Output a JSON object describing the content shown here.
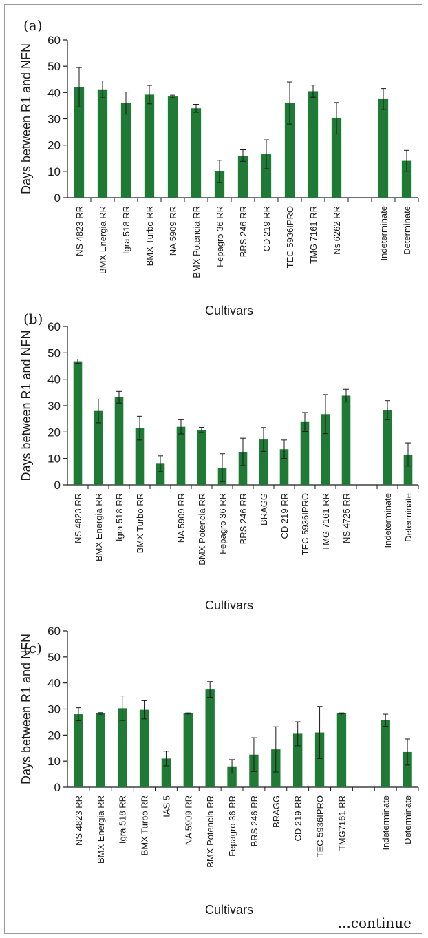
{
  "footer": "...continue",
  "colors": {
    "bar": "#1f7a36",
    "axis": "#1a1a1a",
    "error": "#1a1a1a"
  },
  "chart_data": [
    {
      "type": "bar",
      "panel": "(a)",
      "ylabel": "Days between R1 and NFN",
      "xlabel": "Cultivars",
      "ylim": [
        0,
        60
      ],
      "yticks": [
        0,
        10,
        20,
        30,
        40,
        50,
        60
      ],
      "categories": [
        "NS 4823 RR",
        "BMX Energia RR",
        "Igra 518 RR",
        "BMX Turbo RR",
        "NA 5909 RR",
        "BMX Potencia RR",
        "Fepagro 36 RR",
        "BRS 246 RR",
        "CD 219 RR",
        "TEC 5936IPRO",
        "TMG 7161 RR",
        "Ns 6262 RR",
        "",
        "Indeterminate",
        "Determinate"
      ],
      "values": [
        42,
        41.2,
        36,
        39.2,
        38.5,
        34,
        10,
        16,
        16.5,
        36,
        40.5,
        30.2,
        null,
        37.5,
        14
      ],
      "errors": [
        7.5,
        3.2,
        4.2,
        3.5,
        0.5,
        1.5,
        4.2,
        2.2,
        5.5,
        8,
        2.3,
        6,
        null,
        4,
        4
      ]
    },
    {
      "type": "bar",
      "panel": "(b)",
      "ylabel": "Days between R1 and NFN",
      "xlabel": "Cultivars",
      "ylim": [
        0,
        60
      ],
      "yticks": [
        0,
        10,
        20,
        30,
        40,
        50,
        60
      ],
      "categories": [
        "NS 4823 RR",
        "BMX Energia RR",
        "Igra 518 RR",
        "BMX Turbo RR",
        "",
        "NA 5909 RR",
        "BMX Potencia RR",
        "Fepagro 36 RR",
        "BRS 246 RR",
        "BRAGG",
        "CD 219 RR",
        "TEC 5936IPRO",
        "TMG 7161 RR",
        "NS 4725 RR",
        "",
        "Indeterminate",
        "Determinate"
      ],
      "values": [
        46.8,
        28,
        33.2,
        21.5,
        8,
        22,
        20.8,
        6.5,
        12.5,
        17.2,
        13.5,
        23.8,
        26.8,
        33.8,
        null,
        28.3,
        11.5
      ],
      "errors": [
        0.8,
        4.5,
        2.2,
        4.5,
        3,
        2.7,
        1,
        5.3,
        5.2,
        4.5,
        3.5,
        3.6,
        7.4,
        2.4,
        null,
        3.6,
        4.4
      ]
    },
    {
      "type": "bar",
      "panel": "(c)",
      "ylabel": "Days between R1 and NFN",
      "xlabel": "Cultivars",
      "ylim": [
        0,
        60
      ],
      "yticks": [
        0,
        10,
        20,
        30,
        40,
        50,
        60
      ],
      "categories": [
        "NS 4823 RR",
        "BMX Energia RR",
        "Igra 518 RR",
        "BMX Turbo RR",
        "IAS 5",
        "NA 5909 RR",
        "BMX Potencia RR",
        "Fepagro 36 RR",
        "BRS 246 RR",
        "BRAGG",
        "CD 219 RR",
        "TEC 5936IPRO",
        "TMG7161 RR",
        "",
        "Indeterminate",
        "Determinate"
      ],
      "values": [
        28,
        28.3,
        30.3,
        29.7,
        11,
        28.3,
        37.5,
        8,
        12.5,
        14.5,
        20.5,
        21,
        28.3,
        null,
        25.7,
        13.5
      ],
      "errors": [
        2.5,
        0.3,
        4.7,
        3.5,
        2.8,
        0.2,
        3,
        2.6,
        6.5,
        8.7,
        4.6,
        10,
        0.2,
        null,
        2.3,
        5
      ]
    }
  ]
}
